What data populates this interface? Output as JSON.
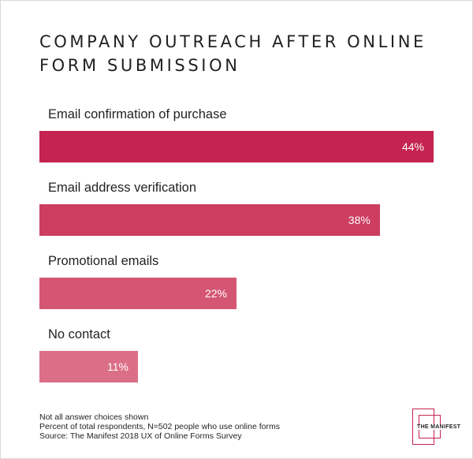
{
  "chart_data": {
    "type": "bar",
    "orientation": "horizontal",
    "title": "COMPANY OUTREACH AFTER ONLINE FORM SUBMISSION",
    "categories": [
      "Email confirmation of purchase",
      "Email address verification",
      "Promotional emails",
      "No contact"
    ],
    "values": [
      44,
      38,
      22,
      11
    ],
    "value_labels": [
      "44%",
      "38%",
      "22%",
      "11%"
    ],
    "xlim": [
      0,
      44
    ],
    "grid": false,
    "legend": "none",
    "bar_colors": [
      "#c4244f",
      "#cc3d60",
      "#d45673",
      "#dc6f88"
    ]
  },
  "footnotes": [
    "Not all answer choices shown",
    "Percent of total respondents, N=502 people who use online forms",
    "Source: The Manifest 2018 UX of Online Forms Survey"
  ],
  "logo": {
    "text": "THE MANIFEST",
    "color": "#c4244f"
  }
}
